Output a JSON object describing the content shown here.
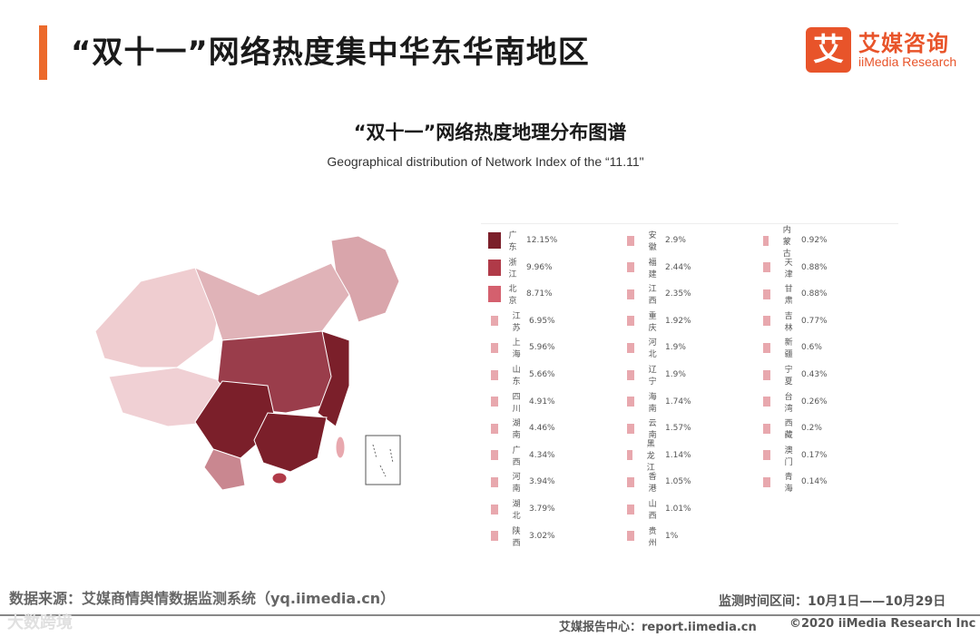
{
  "header": {
    "title": "“双十一”网络热度集中华东华南地区"
  },
  "logo": {
    "mark": "艾",
    "name_cn": "艾媒咨询",
    "name_en": "iiMedia Research"
  },
  "chart_data": {
    "type": "choropleth-map",
    "title": "“双十一”网络热度地理分布图谱",
    "subtitle": "Geographical distribution of Network Index of the  “11.11\"",
    "unit": "%",
    "legend_placement": "right",
    "regions": [
      {
        "name": "广东",
        "value": 12.15
      },
      {
        "name": "浙江",
        "value": 9.96
      },
      {
        "name": "北京",
        "value": 8.71
      },
      {
        "name": "江苏",
        "value": 6.95
      },
      {
        "name": "上海",
        "value": 5.96
      },
      {
        "name": "山东",
        "value": 5.66
      },
      {
        "name": "四川",
        "value": 4.91
      },
      {
        "name": "湖南",
        "value": 4.46
      },
      {
        "name": "广西",
        "value": 4.34
      },
      {
        "name": "河南",
        "value": 3.94
      },
      {
        "name": "湖北",
        "value": 3.79
      },
      {
        "name": "陕西",
        "value": 3.02
      },
      {
        "name": "安徽",
        "value": 2.9
      },
      {
        "name": "福建",
        "value": 2.44
      },
      {
        "name": "江西",
        "value": 2.35
      },
      {
        "name": "重庆",
        "value": 1.92
      },
      {
        "name": "河北",
        "value": 1.9
      },
      {
        "name": "辽宁",
        "value": 1.9
      },
      {
        "name": "海南",
        "value": 1.74
      },
      {
        "name": "云南",
        "value": 1.57
      },
      {
        "name": "黑龙江",
        "value": 1.14
      },
      {
        "name": "香港",
        "value": 1.05
      },
      {
        "name": "山西",
        "value": 1.01
      },
      {
        "name": "贵州",
        "value": 1.0
      },
      {
        "name": "内蒙古",
        "value": 0.92
      },
      {
        "name": "天津",
        "value": 0.88
      },
      {
        "name": "甘肃",
        "value": 0.88
      },
      {
        "name": "吉林",
        "value": 0.77
      },
      {
        "name": "新疆",
        "value": 0.6
      },
      {
        "name": "宁夏",
        "value": 0.43
      },
      {
        "name": "台湾",
        "value": 0.26
      },
      {
        "name": "西藏",
        "value": 0.2
      },
      {
        "name": "澳门",
        "value": 0.17
      },
      {
        "name": "青海",
        "value": 0.14
      }
    ],
    "colors": {
      "level1": "#7b1f2a",
      "level2": "#b03a48",
      "level3": "#d4606e",
      "level4": "#e8a8ae",
      "border": "#ffffff"
    }
  },
  "footer": {
    "source": "数据来源：艾媒商情舆情数据监测系统（yq.iimedia.cn）",
    "period": "监测时间区间：10月1日——10月29日",
    "report_center": "艾媒报告中心：report.iimedia.cn",
    "copyright": "©2020  iiMedia Research  Inc",
    "watermark": "大数跨境"
  }
}
